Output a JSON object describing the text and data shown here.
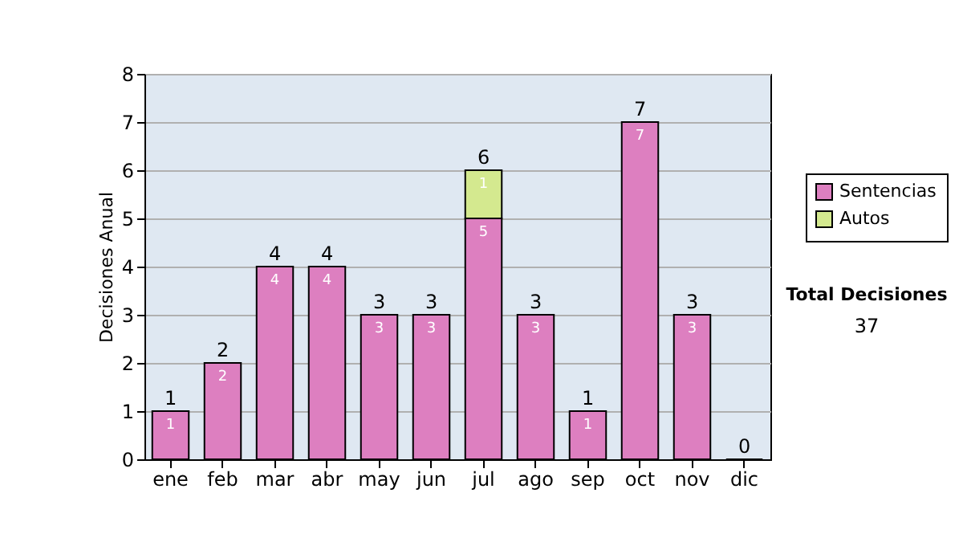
{
  "chart_data": {
    "type": "bar",
    "stacked": true,
    "ylabel": "Decisiones Anual",
    "categories": [
      "ene",
      "feb",
      "mar",
      "abr",
      "may",
      "jun",
      "jul",
      "ago",
      "sep",
      "oct",
      "nov",
      "dic"
    ],
    "series": [
      {
        "name": "Sentencias",
        "color": "#dd7fc0",
        "values": [
          1,
          2,
          4,
          4,
          3,
          3,
          5,
          3,
          1,
          7,
          3,
          0
        ],
        "value_labels": [
          "1",
          "2",
          "4",
          "4",
          "3",
          "3",
          "5",
          "3",
          "1",
          "7",
          "3",
          null
        ]
      },
      {
        "name": "Autos",
        "color": "#d4e98f",
        "values": [
          null,
          null,
          null,
          null,
          null,
          null,
          1,
          null,
          null,
          null,
          null,
          null
        ],
        "value_labels": [
          null,
          null,
          null,
          null,
          null,
          null,
          "1",
          null,
          null,
          null,
          null,
          null
        ]
      }
    ],
    "totals": [
      "1",
      "2",
      "4",
      "4",
      "3",
      "3",
      "6",
      "3",
      "1",
      "7",
      "3",
      "0"
    ],
    "ylim": [
      0,
      8
    ],
    "yticks": [
      0,
      1,
      2,
      3,
      4,
      5,
      6,
      7,
      8
    ],
    "grid": "y",
    "legend": "right",
    "annotations": [
      "Total Decisiones",
      "37"
    ]
  }
}
